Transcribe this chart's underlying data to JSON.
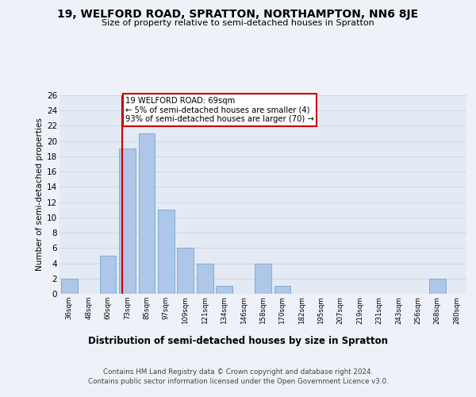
{
  "title": "19, WELFORD ROAD, SPRATTON, NORTHAMPTON, NN6 8JE",
  "subtitle": "Size of property relative to semi-detached houses in Spratton",
  "xlabel": "Distribution of semi-detached houses by size in Spratton",
  "ylabel": "Number of semi-detached properties",
  "footnote1": "Contains HM Land Registry data © Crown copyright and database right 2024.",
  "footnote2": "Contains public sector information licensed under the Open Government Licence v3.0.",
  "bar_labels": [
    "36sqm",
    "48sqm",
    "60sqm",
    "73sqm",
    "85sqm",
    "97sqm",
    "109sqm",
    "121sqm",
    "134sqm",
    "146sqm",
    "158sqm",
    "170sqm",
    "182sqm",
    "195sqm",
    "207sqm",
    "219sqm",
    "231sqm",
    "243sqm",
    "256sqm",
    "268sqm",
    "280sqm"
  ],
  "bar_values": [
    2,
    0,
    5,
    19,
    21,
    11,
    6,
    4,
    1,
    0,
    4,
    1,
    0,
    0,
    0,
    0,
    0,
    0,
    0,
    2,
    0
  ],
  "bar_color": "#aec6e8",
  "bar_edge_color": "#7dafd4",
  "grid_color": "#d0d8e8",
  "subject_line_color": "#cc0000",
  "annotation_text": "19 WELFORD ROAD: 69sqm\n← 5% of semi-detached houses are smaller (4)\n93% of semi-detached houses are larger (70) →",
  "annotation_box_color": "#ffffff",
  "annotation_box_edge": "#cc0000",
  "ylim": [
    0,
    26
  ],
  "yticks": [
    0,
    2,
    4,
    6,
    8,
    10,
    12,
    14,
    16,
    18,
    20,
    22,
    24,
    26
  ],
  "bg_color": "#eef2f8",
  "plot_bg_color": "#e4eaf4"
}
